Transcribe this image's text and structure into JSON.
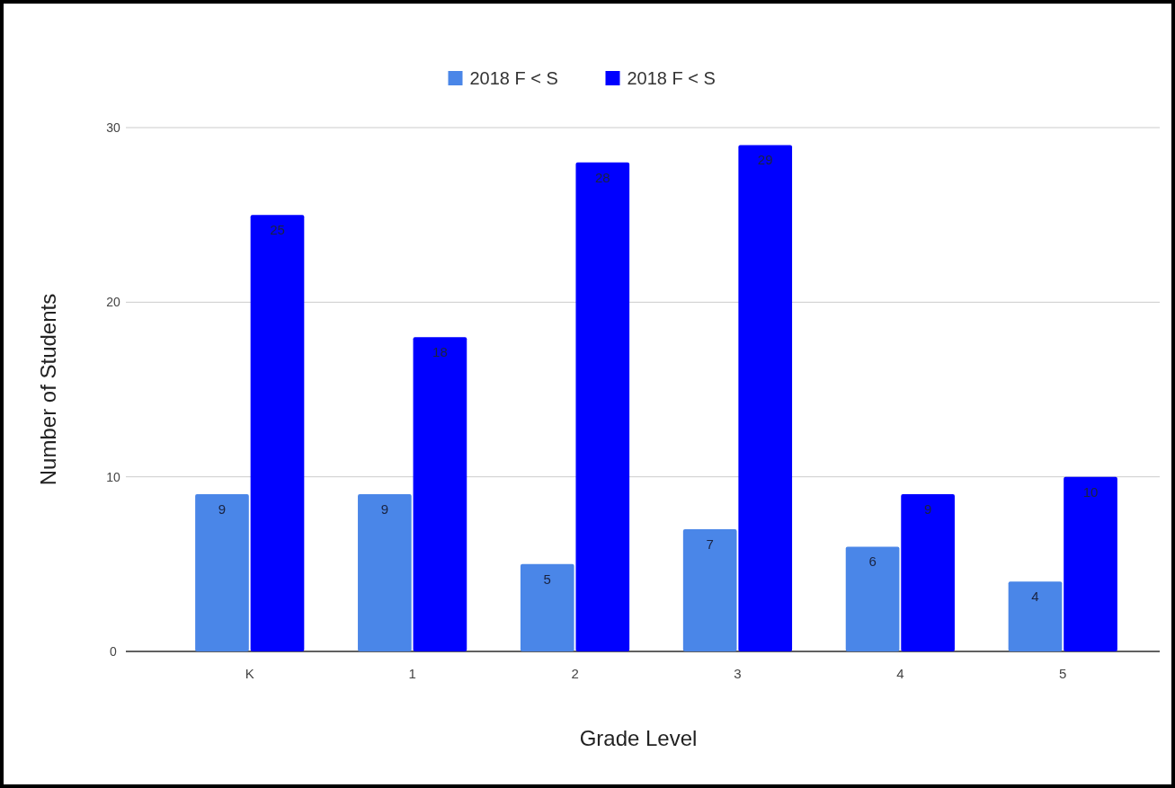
{
  "chart_data": {
    "type": "bar",
    "xlabel": "Grade Level",
    "ylabel": "Number of Students",
    "categories": [
      "K",
      "1",
      "2",
      "3",
      "4",
      "5"
    ],
    "series": [
      {
        "name": "2018 F < S",
        "color": "#4a86e8",
        "values": [
          9,
          9,
          5,
          7,
          6,
          4
        ]
      },
      {
        "name": "2018 F < S",
        "color": "#0000ff",
        "values": [
          25,
          18,
          28,
          29,
          9,
          10
        ]
      }
    ],
    "ylim": [
      0,
      30
    ],
    "yticks": [
      0,
      10,
      20,
      30
    ],
    "grid": "y",
    "legend": "top",
    "data_labels": true
  }
}
